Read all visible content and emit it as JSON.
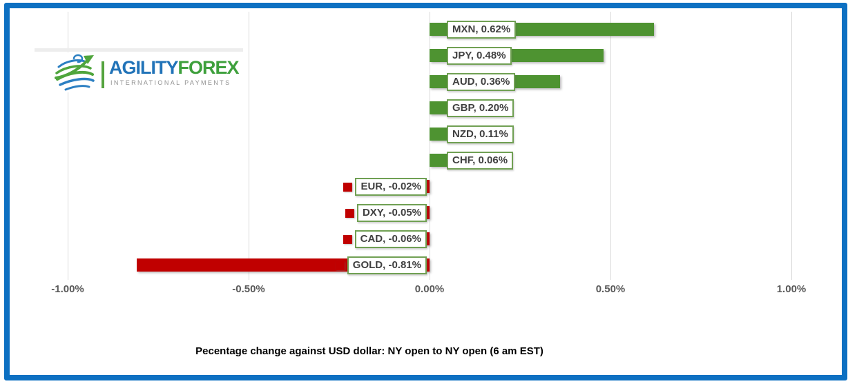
{
  "logo": {
    "brand_primary": "AGILITY",
    "brand_secondary": "FOREX",
    "tagline": "INTERNATIONAL PAYMENTS"
  },
  "chart_data": {
    "type": "bar",
    "orientation": "horizontal",
    "title": "Pecentage change against USD dollar: NY open to NY open  (6 am EST)",
    "categories": [
      "MXN",
      "JPY",
      "AUD",
      "GBP",
      "NZD",
      "CHF",
      "EUR",
      "DXY",
      "CAD",
      "GOLD"
    ],
    "values": [
      0.62,
      0.48,
      0.36,
      0.2,
      0.11,
      0.06,
      -0.02,
      -0.05,
      -0.06,
      -0.81
    ],
    "bar_labels": [
      "MXN, 0.62%",
      "JPY, 0.48%",
      "AUD, 0.36%",
      "GBP, 0.20%",
      "NZD, 0.11%",
      "CHF, 0.06%",
      "EUR, -0.02%",
      "DXY, -0.05%",
      "CAD, -0.06%",
      "GOLD, -0.81%"
    ],
    "x_ticks": [
      {
        "label": "-1.00%",
        "value": -1.0
      },
      {
        "label": "-0.50%",
        "value": -0.5
      },
      {
        "label": "0.00%",
        "value": 0.0
      },
      {
        "label": "0.50%",
        "value": 0.5
      },
      {
        "label": "1.00%",
        "value": 1.0
      }
    ],
    "xlim": [
      -1.0,
      1.0
    ],
    "grid": true,
    "legend": "none",
    "colors": {
      "positive": "#4E9331",
      "negative": "#C00000",
      "label_border": "#70A053",
      "label_text": "#404040",
      "axis_text": "#595959",
      "gridline": "#D9D9D9",
      "frame": "#0D70C2"
    }
  }
}
